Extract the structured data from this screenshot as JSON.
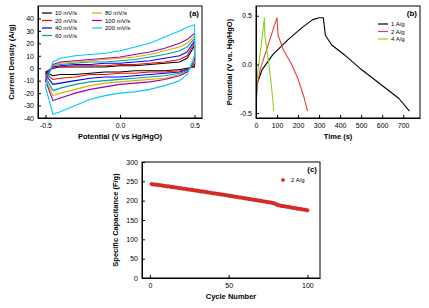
{
  "chart_data": [
    {
      "type": "line",
      "annotations": [
        "(a)"
      ],
      "x_label": "Potential (V vs Hg/HgO)",
      "y_label": "Current Density (A/g)",
      "xlim": [
        -0.55,
        0.55
      ],
      "xticks": [
        -0.5,
        {
          "value": 0,
          "label": "0.0"
        },
        0.5
      ],
      "ylim": [
        -40,
        50
      ],
      "yticks": [
        -40,
        -30,
        -20,
        -10,
        0,
        10,
        20,
        30,
        40
      ],
      "legend": "upper left",
      "series": [
        {
          "name": "10 mV/s",
          "color": "#000000",
          "x": [
            -0.5,
            -0.45,
            -0.4,
            -0.3,
            -0.2,
            -0.1,
            0,
            0.1,
            0.2,
            0.3,
            0.4,
            0.45,
            0.5,
            0.5,
            0.45,
            0.4,
            0.3,
            0.2,
            0.1,
            0,
            -0.1,
            -0.2,
            -0.3,
            -0.4,
            -0.45,
            -0.5
          ],
          "values": [
            -3,
            0,
            1,
            1,
            1,
            1,
            2,
            2,
            3,
            4,
            5,
            8,
            18,
            1,
            0,
            -1,
            -2,
            -2,
            -2,
            -3,
            -3,
            -4,
            -5,
            -5,
            -6,
            -3
          ]
        },
        {
          "name": "20 mV/s",
          "color": "#ff0000",
          "x": [
            -0.5,
            -0.45,
            -0.4,
            -0.3,
            -0.2,
            -0.1,
            0,
            0.1,
            0.2,
            0.3,
            0.4,
            0.45,
            0.5,
            0.5,
            0.45,
            0.4,
            0.3,
            0.2,
            0.1,
            0,
            -0.1,
            -0.2,
            -0.3,
            -0.4,
            -0.45,
            -0.5
          ],
          "values": [
            -4,
            1,
            1,
            2,
            2,
            2,
            3,
            3,
            4,
            5,
            7,
            10,
            20,
            2,
            -1,
            -2,
            -3,
            -3,
            -4,
            -4,
            -5,
            -5,
            -7,
            -8,
            -9,
            -4
          ]
        },
        {
          "name": "40 mV/s",
          "color": "#0000ff",
          "x": [
            -0.5,
            -0.45,
            -0.4,
            -0.3,
            -0.2,
            -0.1,
            0,
            0.1,
            0.2,
            0.3,
            0.4,
            0.45,
            0.5,
            0.5,
            0.45,
            0.4,
            0.3,
            0.2,
            0.1,
            0,
            -0.1,
            -0.2,
            -0.3,
            -0.4,
            -0.45,
            -0.5
          ],
          "values": [
            -5,
            1,
            2,
            3,
            3,
            4,
            4,
            5,
            6,
            8,
            10,
            13,
            22,
            3,
            -1,
            -3,
            -4,
            -5,
            -6,
            -7,
            -7,
            -8,
            -10,
            -12,
            -13,
            -5
          ]
        },
        {
          "name": "60 mV/s",
          "color": "#00a0a0",
          "x": [
            -0.5,
            -0.45,
            -0.4,
            -0.3,
            -0.2,
            -0.1,
            0,
            0.1,
            0.2,
            0.3,
            0.4,
            0.45,
            0.5,
            0.5,
            0.45,
            0.4,
            0.3,
            0.2,
            0.1,
            0,
            -0.1,
            -0.2,
            -0.3,
            -0.4,
            -0.45,
            -0.5
          ],
          "values": [
            -7,
            2,
            3,
            4,
            5,
            5,
            6,
            7,
            9,
            11,
            14,
            17,
            24,
            4,
            -2,
            -4,
            -6,
            -7,
            -8,
            -9,
            -10,
            -11,
            -13,
            -16,
            -18,
            -7
          ]
        },
        {
          "name": "80 mV/s",
          "color": "#d4b000",
          "x": [
            -0.5,
            -0.45,
            -0.4,
            -0.3,
            -0.2,
            -0.1,
            0,
            0.1,
            0.2,
            0.3,
            0.4,
            0.45,
            0.5,
            0.5,
            0.45,
            0.4,
            0.3,
            0.2,
            0.1,
            0,
            -0.1,
            -0.2,
            -0.3,
            -0.4,
            -0.45,
            -0.5
          ],
          "values": [
            -9,
            2,
            4,
            5,
            6,
            7,
            8,
            9,
            11,
            14,
            17,
            20,
            26,
            5,
            -3,
            -5,
            -8,
            -9,
            -10,
            -11,
            -12,
            -14,
            -17,
            -20,
            -22,
            -9
          ]
        },
        {
          "name": "100 mV/s",
          "color": "#a000a0",
          "x": [
            -0.5,
            -0.45,
            -0.4,
            -0.3,
            -0.2,
            -0.1,
            0,
            0.1,
            0.2,
            0.3,
            0.4,
            0.45,
            0.5,
            0.5,
            0.45,
            0.4,
            0.3,
            0.2,
            0.1,
            0,
            -0.1,
            -0.2,
            -0.3,
            -0.4,
            -0.45,
            -0.5
          ],
          "values": [
            -10,
            3,
            5,
            6,
            7,
            8,
            9,
            11,
            13,
            16,
            20,
            23,
            28,
            6,
            -3,
            -6,
            -9,
            -11,
            -12,
            -13,
            -15,
            -17,
            -20,
            -24,
            -26,
            -10
          ]
        },
        {
          "name": "200 mV/s",
          "color": "#00c8ff",
          "x": [
            -0.5,
            -0.45,
            -0.4,
            -0.3,
            -0.2,
            -0.1,
            0,
            0.1,
            0.2,
            0.3,
            0.4,
            0.45,
            0.5,
            0.5,
            0.45,
            0.4,
            0.3,
            0.2,
            0.1,
            0,
            -0.1,
            -0.2,
            -0.3,
            -0.4,
            -0.45,
            -0.5
          ],
          "values": [
            -15,
            5,
            8,
            10,
            11,
            12,
            14,
            17,
            20,
            25,
            30,
            33,
            35,
            10,
            -5,
            -10,
            -14,
            -17,
            -19,
            -20,
            -22,
            -25,
            -30,
            -35,
            -37,
            -15
          ]
        }
      ]
    },
    {
      "type": "line",
      "annotations": [
        "(b)"
      ],
      "x_label": "Time (s)",
      "y_label": "Potential (V vs. Hg/HgO)",
      "xlim": [
        0,
        780
      ],
      "xticks": [
        0,
        100,
        200,
        300,
        400,
        500,
        600,
        700
      ],
      "ylim": [
        -0.55,
        0.6
      ],
      "yticks": [
        -0.5,
        {
          "value": 0,
          "label": "0.0"
        },
        0.5
      ],
      "legend": "upper right",
      "series": [
        {
          "name": "1 A/g",
          "color": "#000000",
          "x": [
            0,
            5,
            30,
            80,
            150,
            220,
            270,
            300,
            320,
            330,
            360,
            420,
            500,
            560,
            620,
            680,
            730
          ],
          "values": [
            -0.48,
            -0.2,
            -0.05,
            0.1,
            0.25,
            0.38,
            0.46,
            0.48,
            0.48,
            0.3,
            0.2,
            0.1,
            -0.05,
            -0.15,
            -0.25,
            -0.35,
            -0.48
          ]
        },
        {
          "name": "2 A/g",
          "color": "#e8403a",
          "x": [
            0,
            3,
            20,
            50,
            80,
            100,
            105,
            130,
            170,
            200,
            230,
            245
          ],
          "values": [
            -0.48,
            -0.25,
            -0.05,
            0.15,
            0.35,
            0.48,
            0.3,
            0.15,
            0,
            -0.15,
            -0.35,
            -0.48
          ]
        },
        {
          "name": "4 A/g",
          "color": "#90d020",
          "x": [
            0,
            2,
            10,
            25,
            40,
            42,
            55,
            70,
            85
          ],
          "values": [
            -0.48,
            -0.25,
            -0.05,
            0.2,
            0.48,
            0.3,
            0.1,
            -0.15,
            -0.48
          ]
        }
      ]
    },
    {
      "type": "scatter",
      "annotations": [
        "(c)"
      ],
      "x_label": "Cycle Number",
      "y_label": "Specific Capacitance (F/g)",
      "xlim": [
        -5,
        108
      ],
      "xticks": [
        0,
        50,
        100
      ],
      "ylim": [
        0,
        300
      ],
      "yticks": [
        0,
        50,
        100,
        150,
        200,
        250,
        300
      ],
      "legend": "upper right",
      "series": [
        {
          "name": "2 A/g",
          "color": "#e8302a",
          "marker": "circle",
          "x": [
            1,
            2,
            3,
            4,
            5,
            6,
            7,
            8,
            9,
            10,
            11,
            12,
            13,
            14,
            15,
            16,
            17,
            18,
            19,
            20,
            21,
            22,
            23,
            24,
            25,
            26,
            27,
            28,
            29,
            30,
            31,
            32,
            33,
            34,
            35,
            36,
            37,
            38,
            39,
            40,
            41,
            42,
            43,
            44,
            45,
            46,
            47,
            48,
            49,
            50,
            51,
            52,
            53,
            54,
            55,
            56,
            57,
            58,
            59,
            60,
            61,
            62,
            63,
            64,
            65,
            66,
            67,
            68,
            69,
            70,
            71,
            72,
            73,
            74,
            75,
            76,
            77,
            78,
            79,
            80,
            81,
            82,
            83,
            84,
            85,
            86,
            87,
            88,
            89,
            90,
            91,
            92,
            93,
            94,
            95,
            96,
            97,
            98,
            99,
            100
          ],
          "values": [
            243,
            242,
            242,
            241,
            241,
            240,
            240,
            239,
            238,
            238,
            237,
            237,
            236,
            235,
            235,
            234,
            234,
            233,
            232,
            232,
            231,
            231,
            230,
            229,
            229,
            228,
            228,
            227,
            226,
            226,
            225,
            224,
            224,
            223,
            223,
            222,
            221,
            221,
            220,
            219,
            219,
            218,
            218,
            217,
            216,
            216,
            215,
            214,
            214,
            213,
            212,
            212,
            211,
            210,
            210,
            209,
            208,
            208,
            207,
            206,
            206,
            205,
            204,
            204,
            203,
            202,
            202,
            201,
            200,
            200,
            199,
            198,
            198,
            197,
            196,
            196,
            195,
            194,
            193,
            191,
            189,
            188,
            187,
            186,
            186,
            185,
            184,
            184,
            183,
            182,
            181,
            181,
            180,
            179,
            179,
            178,
            177,
            177,
            176,
            175
          ]
        }
      ]
    }
  ]
}
